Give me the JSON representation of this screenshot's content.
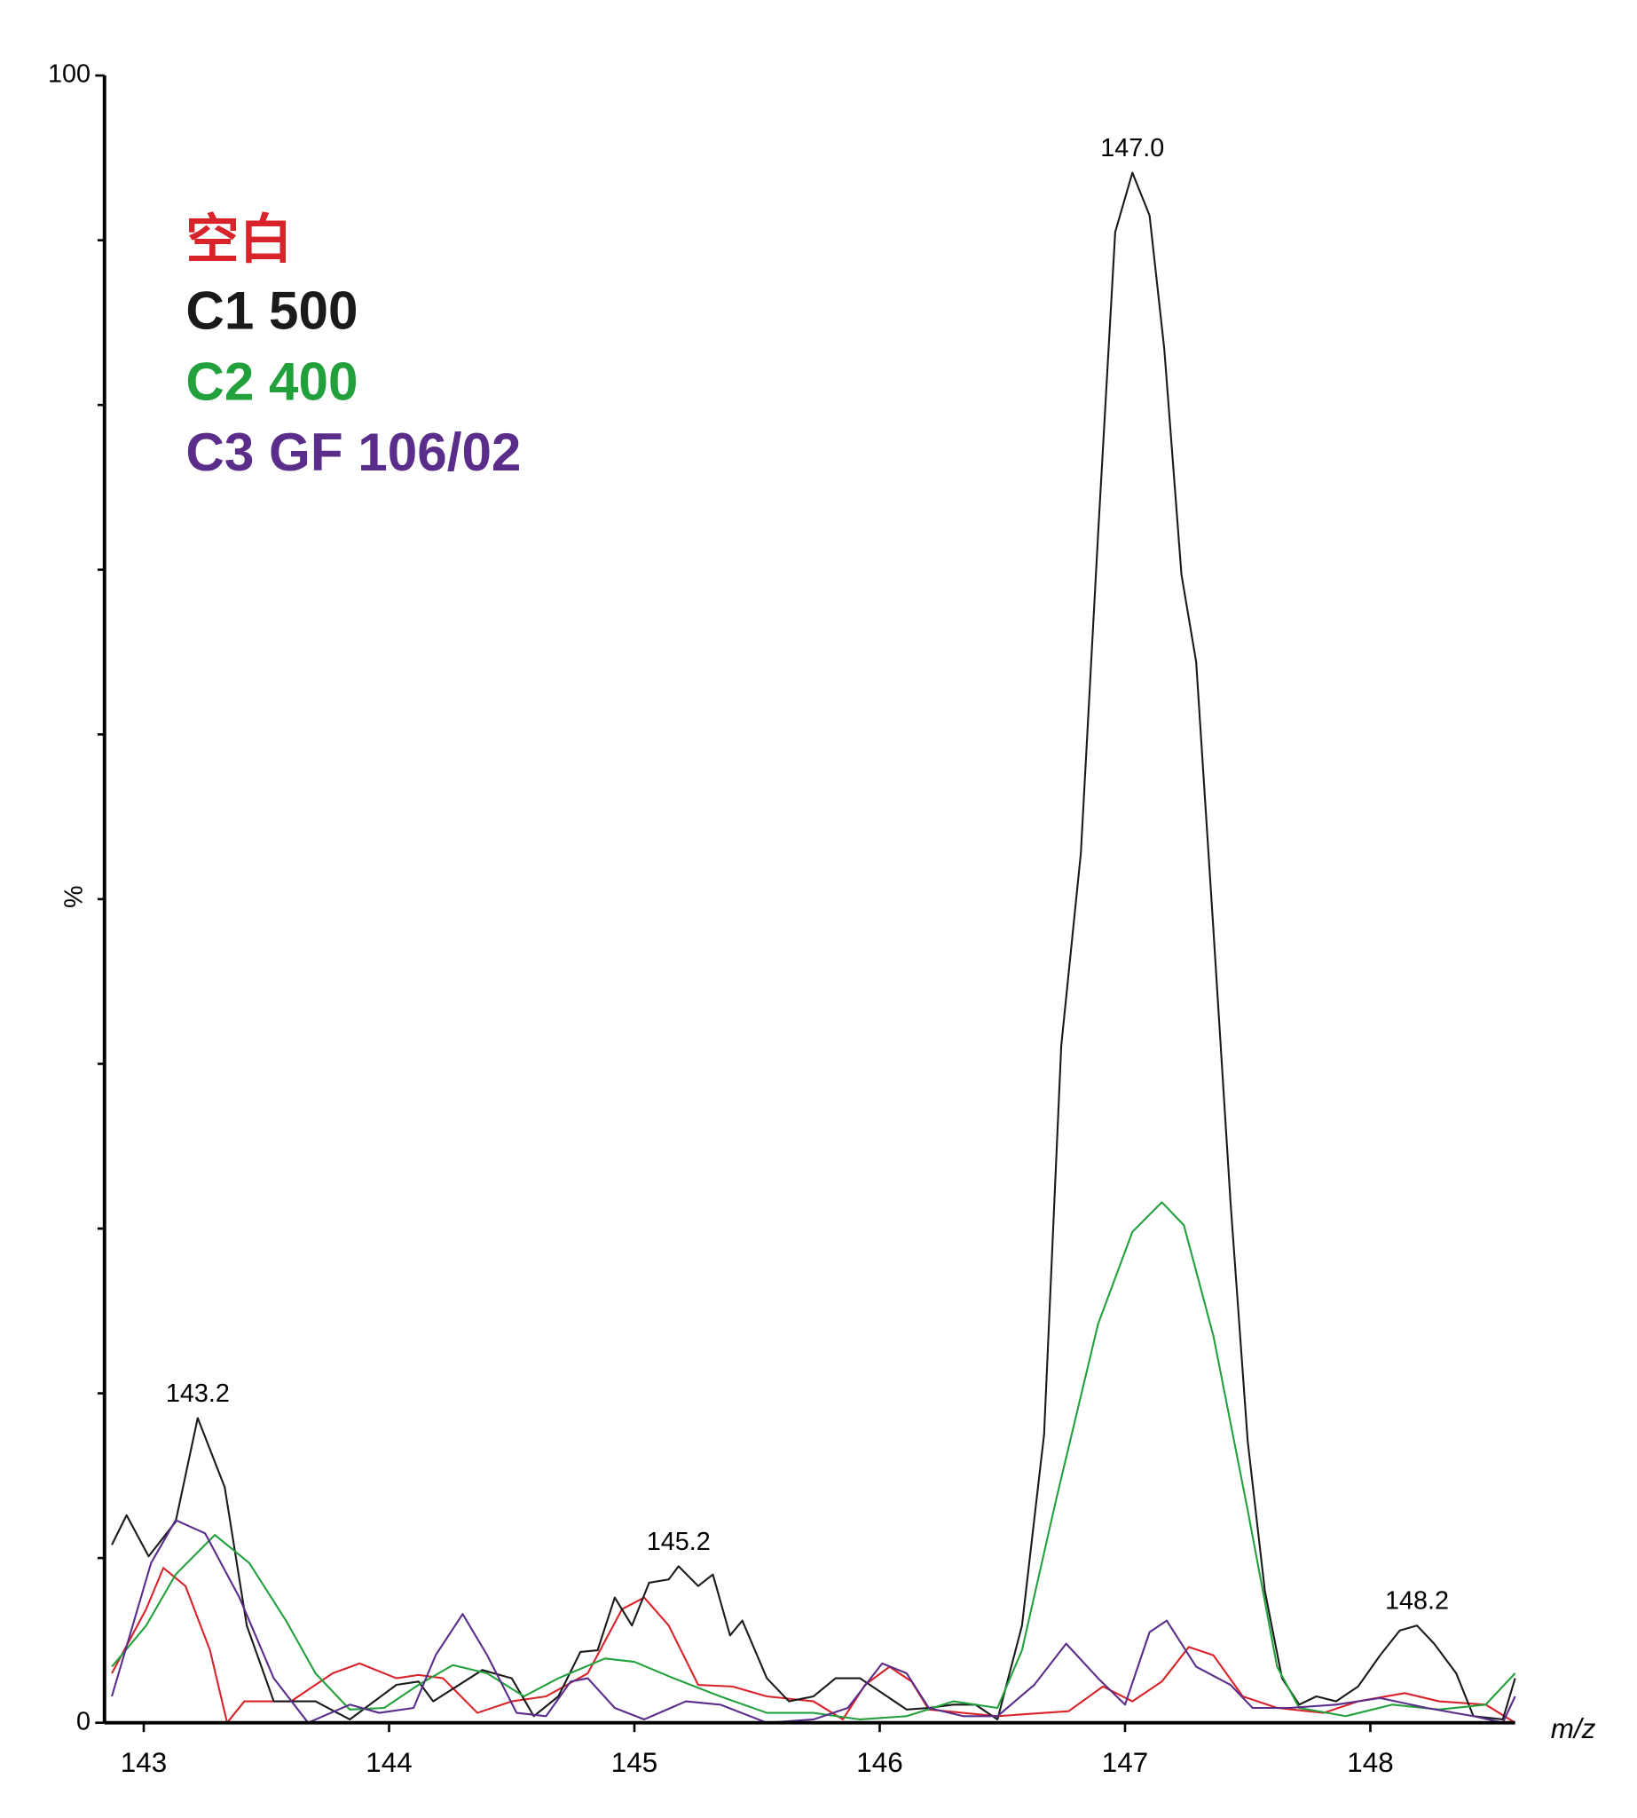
{
  "chart_data": {
    "type": "line",
    "xlabel": "m/z",
    "ylabel": "%",
    "xlim": [
      142.84,
      148.59
    ],
    "ylim": [
      0,
      100
    ],
    "xticks": [
      143,
      144,
      145,
      146,
      147,
      148
    ],
    "yticks": [
      0,
      100
    ],
    "yminorticks": [
      10,
      20,
      30,
      40,
      50,
      60,
      70,
      80,
      90
    ],
    "legend": "upper left",
    "series": [
      {
        "name": "空白",
        "color": "#d8232a",
        "x": [
          142.87,
          143.01,
          143.08,
          143.17,
          143.27,
          143.34,
          143.41,
          143.6,
          143.77,
          143.88,
          144.03,
          144.12,
          144.22,
          144.36,
          144.5,
          144.64,
          144.81,
          144.95,
          145.04,
          145.14,
          145.26,
          145.4,
          145.54,
          145.73,
          145.85,
          145.94,
          146.04,
          146.13,
          146.2,
          146.34,
          146.48,
          146.67,
          146.77,
          146.91,
          147.03,
          147.15,
          147.26,
          147.36,
          147.48,
          147.62,
          147.81,
          147.95,
          148.14,
          148.28,
          148.47,
          148.59
        ],
        "values": [
          3.0,
          6.9,
          9.4,
          8.3,
          4.4,
          0,
          1.3,
          1.3,
          3.0,
          3.6,
          2.7,
          2.9,
          2.7,
          0.6,
          1.3,
          1.6,
          3.0,
          6.9,
          7.6,
          5.9,
          2.3,
          2.2,
          1.6,
          1.3,
          0.2,
          2.3,
          3.4,
          2.5,
          0.8,
          0.6,
          0.4,
          0.6,
          0.7,
          2.2,
          1.3,
          2.5,
          4.6,
          4.1,
          1.6,
          0.9,
          0.6,
          1.3,
          1.8,
          1.3,
          1.1,
          0
        ]
      },
      {
        "name": "C1 500",
        "color": "#1a1a1a",
        "x": [
          142.87,
          142.93,
          143.02,
          143.13,
          143.22,
          143.33,
          143.42,
          143.53,
          143.7,
          143.84,
          144.03,
          144.12,
          144.18,
          144.38,
          144.5,
          144.59,
          144.69,
          144.78,
          144.85,
          144.92,
          144.99,
          145.06,
          145.14,
          145.18,
          145.26,
          145.32,
          145.39,
          145.44,
          145.54,
          145.63,
          145.73,
          145.82,
          145.92,
          146.01,
          146.11,
          146.2,
          146.3,
          146.39,
          146.48,
          146.58,
          146.67,
          146.74,
          146.82,
          146.89,
          146.96,
          147.03,
          147.1,
          147.16,
          147.23,
          147.29,
          147.36,
          147.43,
          147.5,
          147.57,
          147.64,
          147.71,
          147.78,
          147.86,
          147.95,
          148.04,
          148.12,
          148.19,
          148.26,
          148.35,
          148.42,
          148.54,
          148.59
        ],
        "values": [
          10.8,
          12.6,
          10.1,
          12.2,
          18.5,
          14.3,
          5.9,
          1.3,
          1.3,
          0.2,
          2.3,
          2.5,
          1.3,
          3.2,
          2.7,
          0.4,
          1.6,
          4.3,
          4.4,
          7.6,
          5.9,
          8.5,
          8.7,
          9.5,
          8.3,
          9.0,
          5.3,
          6.2,
          2.7,
          1.3,
          1.6,
          2.7,
          2.7,
          1.8,
          0.8,
          0.9,
          1.1,
          1.1,
          0.2,
          5.9,
          17.5,
          41.1,
          52.8,
          72.1,
          90.5,
          94.1,
          91.5,
          83.4,
          69.7,
          64.4,
          48.2,
          31.6,
          17.1,
          8.0,
          2.7,
          1.1,
          1.6,
          1.3,
          2.2,
          4.1,
          5.6,
          5.9,
          4.8,
          3.0,
          0.4,
          0.2,
          2.7
        ]
      },
      {
        "name": "C2 400",
        "color": "#22a03c",
        "x": [
          142.87,
          143.01,
          143.13,
          143.29,
          143.43,
          143.58,
          143.7,
          143.84,
          143.98,
          144.12,
          144.26,
          144.4,
          144.55,
          144.69,
          144.88,
          145.0,
          145.16,
          145.35,
          145.54,
          145.73,
          145.92,
          146.11,
          146.3,
          146.48,
          146.58,
          146.72,
          146.89,
          147.03,
          147.15,
          147.24,
          147.36,
          147.5,
          147.62,
          147.71,
          147.9,
          148.09,
          148.28,
          148.47,
          148.59
        ],
        "values": [
          3.4,
          5.9,
          9.0,
          11.4,
          9.7,
          6.2,
          3.0,
          0.8,
          0.9,
          2.3,
          3.5,
          3.0,
          1.6,
          2.7,
          3.9,
          3.7,
          2.7,
          1.6,
          0.6,
          0.6,
          0.2,
          0.4,
          1.3,
          0.9,
          4.4,
          13.6,
          24.2,
          29.8,
          31.6,
          30.2,
          23.5,
          12.9,
          3.4,
          0.9,
          0.4,
          1.1,
          0.8,
          1.1,
          3.0
        ]
      },
      {
        "name": "C3 GF 106/02",
        "color": "#5a2d8a",
        "x": [
          142.87,
          143.03,
          143.13,
          143.25,
          143.39,
          143.53,
          143.67,
          143.84,
          143.96,
          144.1,
          144.19,
          144.3,
          144.4,
          144.52,
          144.64,
          144.74,
          144.81,
          144.92,
          145.04,
          145.21,
          145.35,
          145.54,
          145.73,
          145.87,
          146.01,
          146.11,
          146.2,
          146.34,
          146.48,
          146.63,
          146.76,
          146.89,
          147.0,
          147.1,
          147.17,
          147.29,
          147.43,
          147.52,
          147.67,
          147.86,
          148.04,
          148.23,
          148.42,
          148.54,
          148.59
        ],
        "values": [
          1.6,
          9.7,
          12.3,
          11.5,
          7.6,
          2.7,
          0,
          1.1,
          0.6,
          0.9,
          4.1,
          6.6,
          4.1,
          0.6,
          0.4,
          2.5,
          2.7,
          0.9,
          0.2,
          1.3,
          1.1,
          0,
          0.2,
          0.9,
          3.6,
          3.0,
          0.9,
          0.4,
          0.4,
          2.3,
          4.8,
          2.7,
          1.1,
          5.5,
          6.2,
          3.4,
          2.3,
          0.9,
          0.9,
          1.1,
          1.5,
          0.9,
          0.4,
          0,
          1.6
        ]
      }
    ],
    "annotations": [
      {
        "label": "143.2",
        "x": 143.22,
        "y": 18.5
      },
      {
        "label": "145.2",
        "x": 145.18,
        "y": 9.5
      },
      {
        "label": "147.0",
        "x": 147.03,
        "y": 94.1
      },
      {
        "label": "148.2",
        "x": 148.19,
        "y": 5.9
      }
    ]
  }
}
